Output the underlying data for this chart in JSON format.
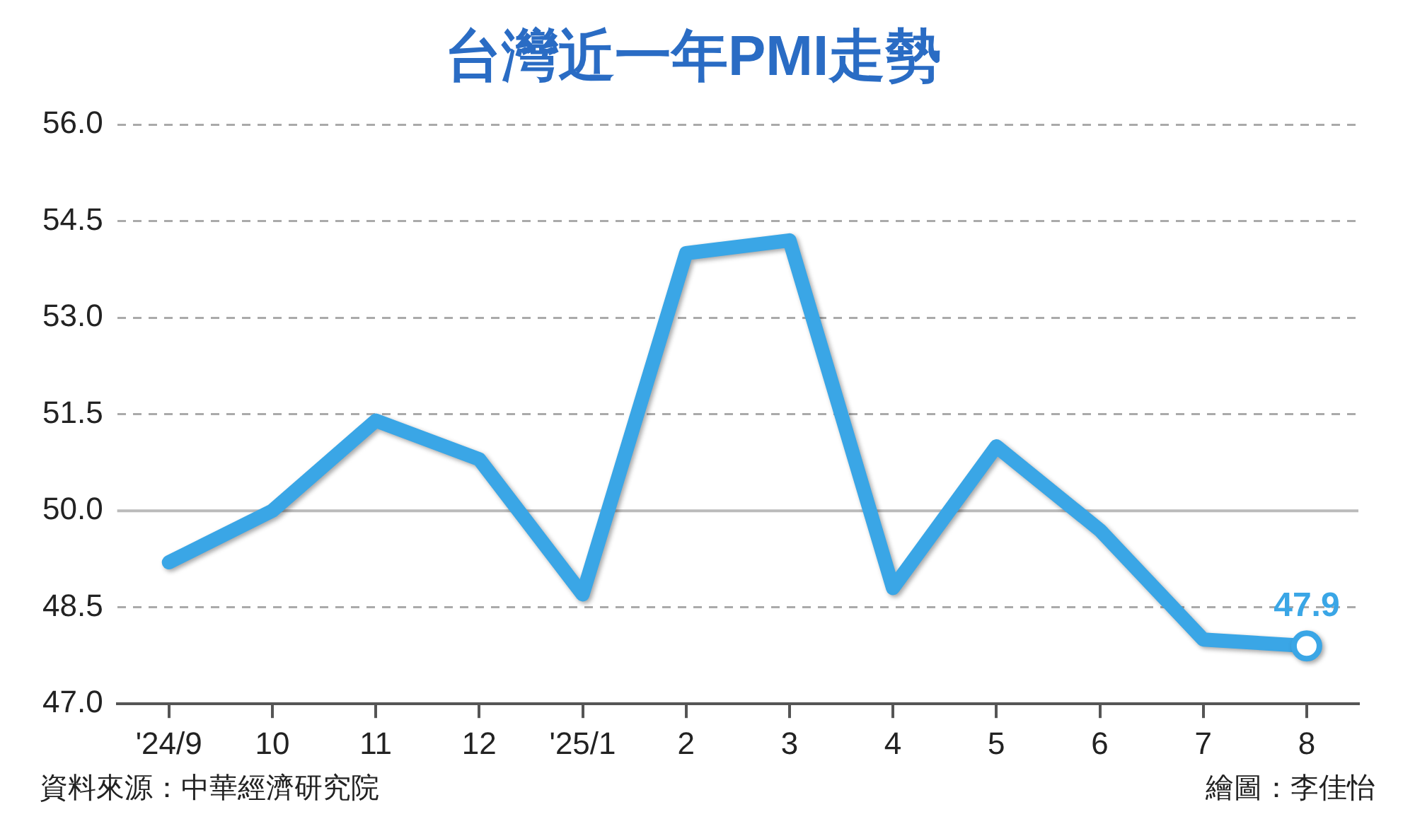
{
  "chart_data": {
    "type": "line",
    "title": "台灣近一年PMI走勢",
    "categories": [
      "'24/9",
      "10",
      "11",
      "12",
      "'25/1",
      "2",
      "3",
      "4",
      "5",
      "6",
      "7",
      "8"
    ],
    "series": [
      {
        "color": "#3aa6e6",
        "values": [
          49.2,
          50.0,
          51.4,
          50.8,
          48.7,
          54.0,
          54.2,
          48.8,
          51.0,
          49.7,
          48.0,
          47.9
        ],
        "value_labels": [
          null,
          null,
          null,
          null,
          null,
          null,
          null,
          null,
          null,
          null,
          null,
          "47.9"
        ]
      }
    ],
    "ylim": [
      47.0,
      56.0
    ],
    "yticks": [
      {
        "value": 47,
        "label": "47.0"
      },
      {
        "value": 48.5,
        "label": "48.5"
      },
      {
        "value": 50,
        "label": "50.0"
      },
      {
        "value": 51.5,
        "label": "51.5"
      },
      {
        "value": 53,
        "label": "53.0"
      },
      {
        "value": 54.5,
        "label": "54.5"
      },
      {
        "value": 56,
        "label": "56.0"
      }
    ],
    "grid": "y",
    "line_style": "solid",
    "legend": false,
    "ref_lines": [
      {
        "axis": "y",
        "value": 50,
        "color": "#bbbbbb"
      }
    ],
    "annotations": [
      "資料來源：中華經濟研究院",
      "繪圖：李佳怡"
    ]
  }
}
